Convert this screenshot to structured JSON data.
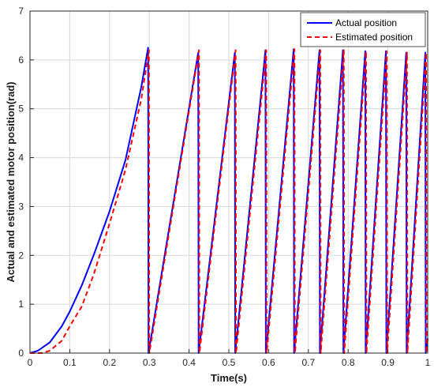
{
  "chart_data": {
    "type": "line",
    "title": "",
    "xlabel": "Time(s)",
    "ylabel": "Actual and estimated motor position(rad)",
    "xlim": [
      0,
      1
    ],
    "ylim": [
      0,
      7
    ],
    "xticks": [
      0,
      0.1,
      0.2,
      0.3,
      0.4,
      0.5,
      0.6,
      0.7,
      0.8,
      0.9,
      1
    ],
    "xtick_labels": [
      "0",
      "0.1",
      "0.2",
      "0.3",
      "0.4",
      "0.5",
      "0.6",
      "0.7",
      "0.8",
      "0.9",
      "1"
    ],
    "yticks": [
      0,
      1,
      2,
      3,
      4,
      5,
      6,
      7
    ],
    "ytick_labels": [
      "0",
      "1",
      "2",
      "3",
      "4",
      "5",
      "6",
      "7"
    ],
    "grid": true,
    "legend_position": "top-right",
    "series": [
      {
        "name": "Actual position",
        "color": "#0000ff",
        "style": "solid",
        "x": [
          0.0,
          0.02,
          0.05,
          0.08,
          0.1,
          0.13,
          0.16,
          0.2,
          0.24,
          0.28,
          0.297,
          0.298,
          0.423,
          0.424,
          0.515,
          0.516,
          0.592,
          0.593,
          0.663,
          0.664,
          0.728,
          0.729,
          0.787,
          0.788,
          0.843,
          0.844,
          0.895,
          0.896,
          0.946,
          0.947,
          0.994,
          0.995,
          1.0
        ],
        "y": [
          0.0,
          0.05,
          0.22,
          0.55,
          0.85,
          1.38,
          2.0,
          2.9,
          3.95,
          5.45,
          6.25,
          0.0,
          6.15,
          0.0,
          6.15,
          0.0,
          6.2,
          0.0,
          6.22,
          0.0,
          6.2,
          0.0,
          6.2,
          0.0,
          6.18,
          0.0,
          6.18,
          0.0,
          6.15,
          0.0,
          6.15,
          0.0,
          0.3
        ]
      },
      {
        "name": "Estimated position",
        "color": "#ff0000",
        "style": "dashed",
        "x": [
          0.0,
          0.03,
          0.05,
          0.08,
          0.1,
          0.13,
          0.16,
          0.2,
          0.24,
          0.28,
          0.299,
          0.3,
          0.425,
          0.426,
          0.517,
          0.518,
          0.594,
          0.595,
          0.665,
          0.666,
          0.73,
          0.731,
          0.789,
          0.79,
          0.845,
          0.846,
          0.897,
          0.898,
          0.948,
          0.949,
          0.996,
          0.997,
          1.0
        ],
        "y": [
          0.0,
          0.0,
          0.05,
          0.25,
          0.55,
          0.95,
          1.6,
          2.65,
          3.75,
          5.2,
          6.2,
          0.0,
          6.2,
          0.0,
          6.2,
          0.0,
          6.2,
          0.0,
          6.22,
          0.0,
          6.2,
          0.0,
          6.2,
          0.0,
          6.18,
          0.0,
          6.18,
          0.0,
          6.15,
          0.0,
          6.15,
          0.0,
          0.3
        ]
      }
    ]
  }
}
